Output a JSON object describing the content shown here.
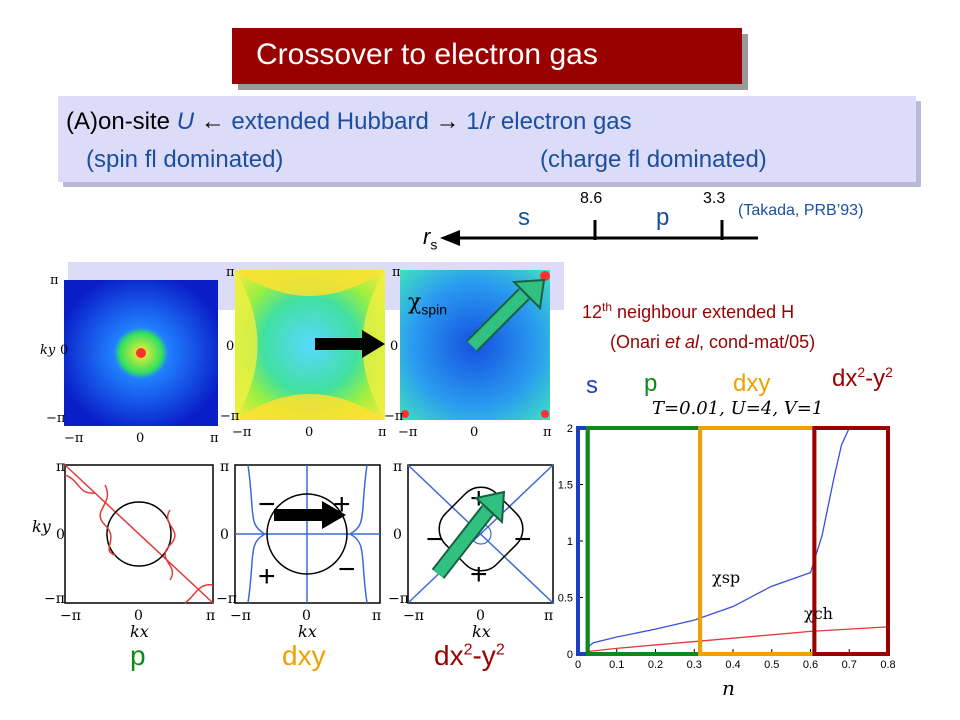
{
  "title": "Crossover to electron gas",
  "subtitle": {
    "line1_a": "(A)on-site ",
    "line1_U": "U",
    "line1_arrow_left": "←",
    "line1_b": " extended Hubbard ",
    "line1_arrow_right": "→",
    "line1_c": " 1/",
    "line1_r": "r",
    "line1_d": " electron gas",
    "line2_left": "(spin fl dominated)",
    "line2_right": "(charge fl dominated)"
  },
  "rs_axis": {
    "label_main": "r",
    "label_sub": "s",
    "tick1_value": "8.6",
    "tick2_value": "3.3",
    "phase_s": "s",
    "phase_p": "p",
    "reference": "(Takada, PRB’93)"
  },
  "chi_spin_label": "χ",
  "chi_spin_sub": "spin",
  "extended_note": {
    "line1_prefix": "12",
    "line1_sup": "th",
    "line1_rest": " neighbour extended H",
    "line2_a": "(Onari ",
    "line2_etal": "et al",
    "line2_b": ", cond-mat/05)"
  },
  "symmetry_labels_top": {
    "s": "s",
    "p": "p",
    "dxy": "dxy",
    "dx2y2_a": "dx",
    "dx2y2_sup1": "2",
    "dx2y2_b": "-y",
    "dx2y2_sup2": "2"
  },
  "symmetry_labels_bottom": {
    "p": "p",
    "dxy": "dxy",
    "dx2y2_a": "dx",
    "dx2y2_sup1": "2",
    "dx2y2_b": "-y",
    "dx2y2_sup2": "2"
  },
  "colors": {
    "s": "#1a3fc4",
    "p": "#0f8a1a",
    "dxy": "#f0a000",
    "dx2y2": "#990000",
    "title_bg": "#990000"
  },
  "panel_axes": {
    "pi": "π",
    "zero": "0",
    "neg_pi": "−π",
    "kx": "kx",
    "ky": "ky"
  },
  "gap_signs": {
    "plus": "+",
    "minus": "−"
  },
  "chart_data": {
    "type": "line",
    "title": "T=0.01, U=4, V=1",
    "xlabel": "n",
    "ylabel": "",
    "xlim": [
      0,
      0.8
    ],
    "ylim": [
      0,
      2
    ],
    "xticks": [
      "0",
      "0.1",
      "0.2",
      "0.3",
      "0.4",
      "0.5",
      "0.6",
      "0.7",
      "0.8"
    ],
    "yticks": [
      "0",
      "0.5",
      "1",
      "1.5",
      "2"
    ],
    "series": [
      {
        "name": "χsp",
        "color": "#3a4fd8",
        "x": [
          0.02,
          0.04,
          0.1,
          0.2,
          0.3,
          0.4,
          0.5,
          0.6,
          0.63,
          0.66,
          0.68,
          0.7
        ],
        "y": [
          0.05,
          0.1,
          0.15,
          0.22,
          0.3,
          0.42,
          0.6,
          0.72,
          1.05,
          1.55,
          1.85,
          2.0
        ]
      },
      {
        "name": "χch",
        "color": "#e03a3a",
        "x": [
          0.02,
          0.1,
          0.2,
          0.3,
          0.4,
          0.5,
          0.6,
          0.7,
          0.8
        ],
        "y": [
          0.02,
          0.05,
          0.08,
          0.11,
          0.14,
          0.17,
          0.2,
          0.22,
          0.24
        ]
      }
    ],
    "series_label_sp": "χsp",
    "series_label_ch": "χch",
    "grid": false
  }
}
